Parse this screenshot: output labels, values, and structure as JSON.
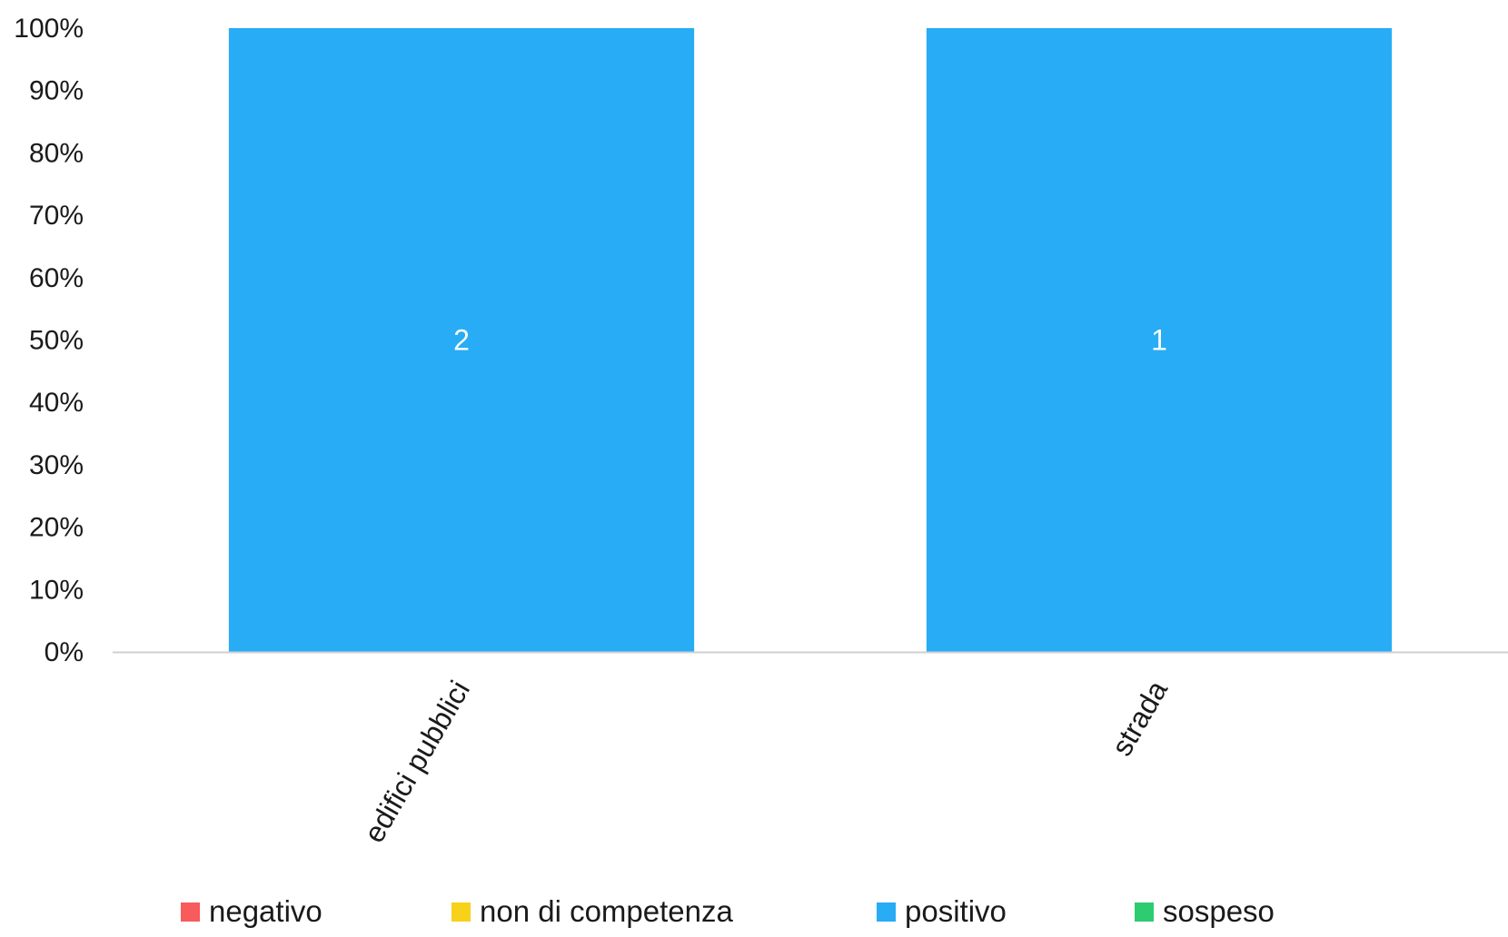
{
  "chart_data": {
    "type": "bar",
    "stacked": true,
    "percent": true,
    "categories": [
      "edifici pubblici",
      "strada"
    ],
    "series": [
      {
        "name": "negativo",
        "color": "#f75b5b",
        "values": [
          0,
          0
        ]
      },
      {
        "name": "non di competenza",
        "color": "#f7d11a",
        "values": [
          0,
          0
        ]
      },
      {
        "name": "positivo",
        "color": "#27acf5",
        "values": [
          2,
          1
        ]
      },
      {
        "name": "sospeso",
        "color": "#2ecc71",
        "values": [
          0,
          0
        ]
      }
    ],
    "ylim": [
      0,
      100
    ],
    "yticks": [
      "0%",
      "10%",
      "20%",
      "30%",
      "40%",
      "50%",
      "60%",
      "70%",
      "80%",
      "90%",
      "100%"
    ],
    "grid": false,
    "legend_position": "bottom",
    "title": "",
    "xlabel": "",
    "ylabel": ""
  }
}
